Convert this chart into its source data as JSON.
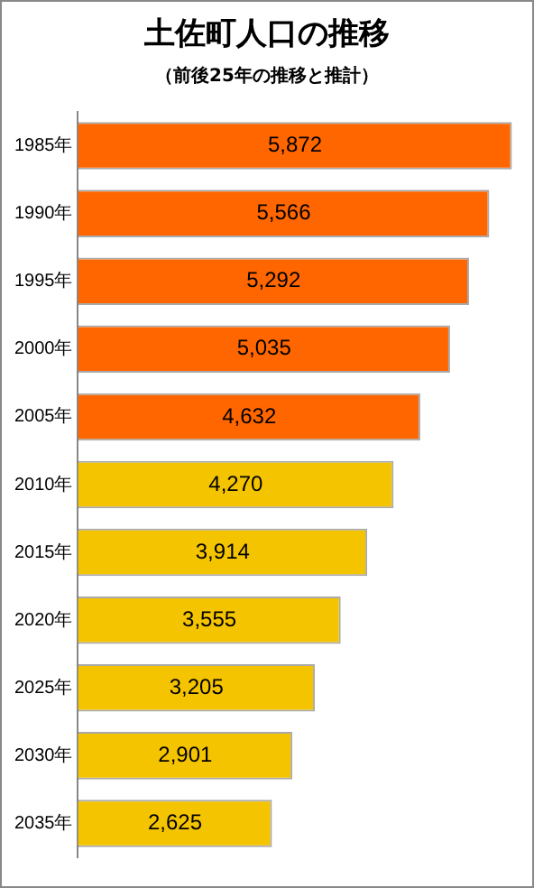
{
  "chart_data": {
    "type": "bar",
    "orientation": "horizontal",
    "title": "土佐町人口の推移",
    "subtitle": "（前後25年の推移と推計）",
    "categories": [
      "1985年",
      "1990年",
      "1995年",
      "2000年",
      "2005年",
      "2010年",
      "2015年",
      "2020年",
      "2025年",
      "2030年",
      "2035年"
    ],
    "values": [
      5872,
      5566,
      5292,
      5035,
      4632,
      4270,
      3914,
      3555,
      3205,
      2901,
      2625
    ],
    "value_labels": [
      "5,872",
      "5,566",
      "5,292",
      "5,035",
      "4,632",
      "4,270",
      "3,914",
      "3,555",
      "3,205",
      "2,901",
      "2,625"
    ],
    "colors": [
      "#ff6600",
      "#ff6600",
      "#ff6600",
      "#ff6600",
      "#ff6600",
      "#f5c400",
      "#f5c400",
      "#f5c400",
      "#f5c400",
      "#f5c400",
      "#f5c400"
    ],
    "tick_labels": "y",
    "grid": false,
    "legend": false
  }
}
